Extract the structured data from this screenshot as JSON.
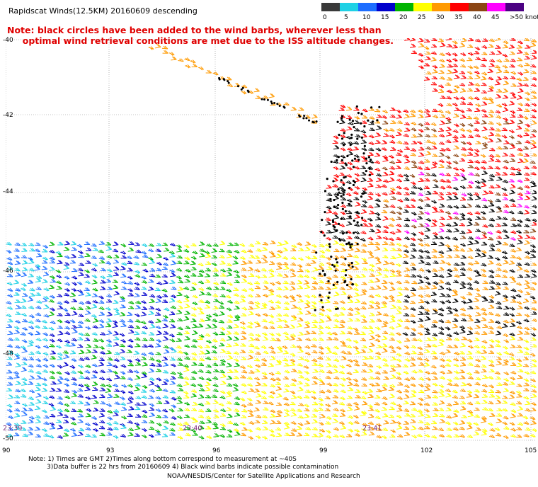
{
  "title": "Rapidscat Winds(12.5KM) 20160609 descending",
  "note": {
    "line1": "Note: black circles have been added to the wind barbs, wherever less than",
    "line2": "optimal wind retrieval conditions are met due to the ISS altitude changes."
  },
  "legend": {
    "labels": [
      "0",
      "5",
      "10",
      "15",
      "20",
      "25",
      "30",
      "35",
      "40",
      "45",
      ">50 knots"
    ],
    "colors": [
      "#3a3a3a",
      "#1fd1e5",
      "#1e6dff",
      "#0000cc",
      "#00b400",
      "#ffff00",
      "#ff9a00",
      "#ff0000",
      "#8b4513",
      "#ff00ff",
      "#4b0082"
    ]
  },
  "axes": {
    "y_labels": [
      "-40",
      "-42",
      "-44",
      "-46",
      "-48",
      "-50"
    ],
    "x_labels": [
      "90",
      "93",
      "96",
      "99",
      "102",
      "105"
    ]
  },
  "time_labels": [
    "23:39",
    "23:40",
    "23:41"
  ],
  "footer": {
    "line1": "Note: 1) Times are GMT 2)Times along bottom correspond to measurement at ~40S",
    "line2": "3)Data buffer is 22 hrs from 20160609 4) Black wind barbs indicate possible contamination",
    "line3": "NOAA/NESDIS/Center for Satellite Applications and Research"
  }
}
